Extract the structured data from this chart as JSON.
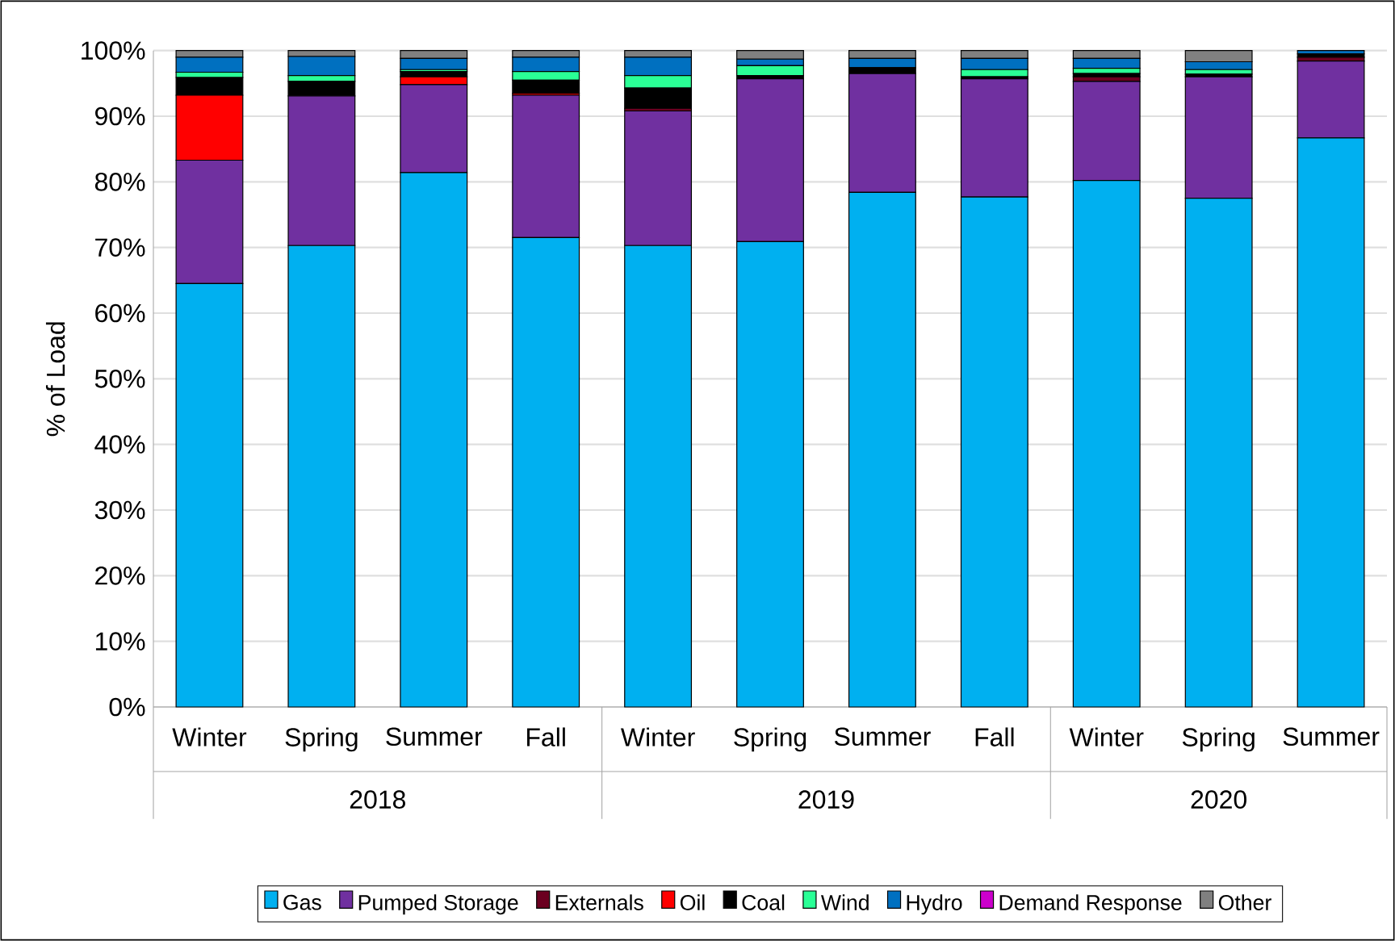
{
  "chart_data": {
    "type": "bar",
    "stacked": true,
    "ylabel": "% of Load",
    "categories": [
      "Winter",
      "Spring",
      "Summer",
      "Fall",
      "Winter",
      "Spring",
      "Summer",
      "Fall",
      "Winter",
      "Spring",
      "Summer"
    ],
    "annotations": [
      "2018",
      "2019",
      "2020"
    ],
    "ylim": [
      0,
      100
    ],
    "yticks": [
      {
        "value": 0,
        "label": "0%"
      },
      {
        "value": 10,
        "label": "10%"
      },
      {
        "value": 20,
        "label": "20%"
      },
      {
        "value": 30,
        "label": "30%"
      },
      {
        "value": 40,
        "label": "40%"
      },
      {
        "value": 50,
        "label": "50%"
      },
      {
        "value": 60,
        "label": "60%"
      },
      {
        "value": 70,
        "label": "70%"
      },
      {
        "value": 80,
        "label": "80%"
      },
      {
        "value": 90,
        "label": "90%"
      },
      {
        "value": 100,
        "label": "100%"
      }
    ],
    "grid": "y",
    "legend": "bottom",
    "series": [
      {
        "name": "Gas",
        "color": "#00b0f0",
        "values": [
          64.5,
          70.3,
          81.4,
          71.5,
          70.3,
          70.9,
          78.4,
          77.7,
          80.2,
          77.5,
          86.7
        ]
      },
      {
        "name": "Pumped Storage",
        "color": "#7030a0",
        "values": [
          18.8,
          22.8,
          13.4,
          21.7,
          20.5,
          24.8,
          18.1,
          18.0,
          15.1,
          18.5,
          11.7
        ]
      },
      {
        "name": "Externals",
        "color": "#6b0020",
        "values": [
          0,
          0,
          0,
          0,
          0.4,
          0,
          0,
          0,
          0.7,
          0,
          0.6
        ]
      },
      {
        "name": "Oil",
        "color": "#ff0000",
        "values": [
          9.9,
          0,
          1.2,
          0.3,
          0,
          0,
          0,
          0,
          0,
          0,
          0
        ]
      },
      {
        "name": "Coal",
        "color": "#000000",
        "values": [
          2.7,
          2.2,
          0.8,
          2.0,
          3.1,
          0.5,
          0.9,
          0.3,
          0.5,
          0.4,
          0.5
        ]
      },
      {
        "name": "Wind",
        "color": "#2aff96",
        "values": [
          0.8,
          0.9,
          0.3,
          1.3,
          1.9,
          1.5,
          0,
          1.1,
          0.8,
          0.7,
          0
        ]
      },
      {
        "name": "Hydro",
        "color": "#0070c0",
        "values": [
          2.3,
          2.9,
          1.7,
          2.2,
          2.8,
          1.0,
          1.4,
          1.7,
          1.5,
          1.2,
          0.5
        ]
      },
      {
        "name": "Demand Response",
        "color": "#cc00cc",
        "values": [
          0,
          0,
          0,
          0,
          0,
          0,
          0,
          0,
          0,
          0,
          0
        ]
      },
      {
        "name": "Other",
        "color": "#808080",
        "values": [
          1.0,
          0.9,
          1.2,
          1.0,
          1.0,
          1.3,
          1.2,
          1.2,
          1.2,
          1.7,
          0
        ]
      }
    ]
  }
}
